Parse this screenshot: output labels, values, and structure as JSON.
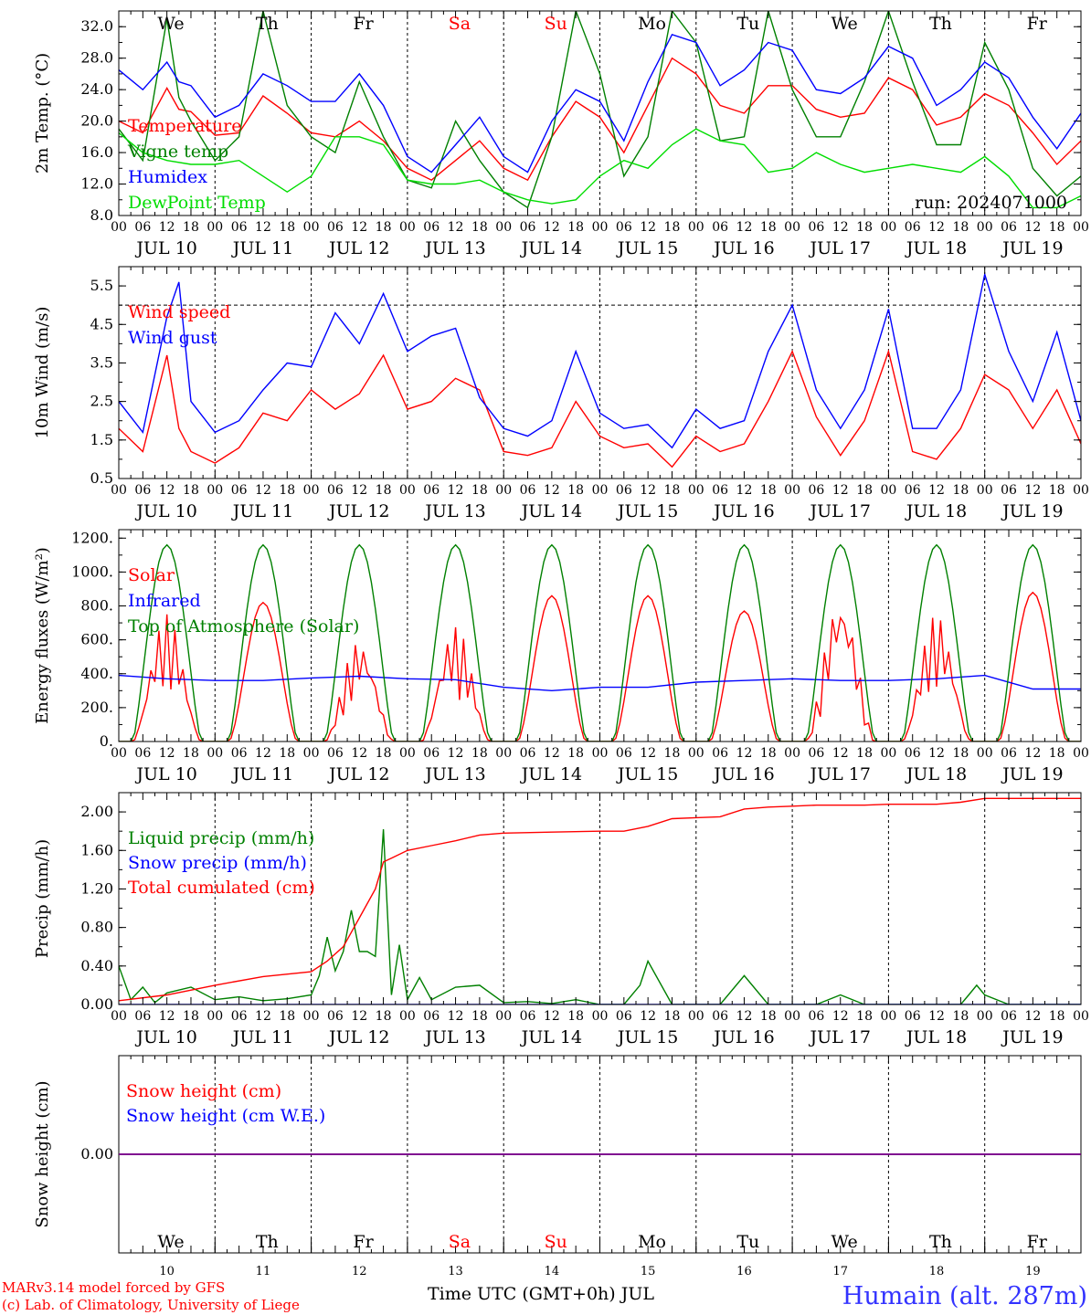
{
  "header": {
    "days": [
      {
        "label": "We",
        "color": "#000000"
      },
      {
        "label": "Th",
        "color": "#000000"
      },
      {
        "label": "Fr",
        "color": "#000000"
      },
      {
        "label": "Sa",
        "color": "#ff0000"
      },
      {
        "label": "Su",
        "color": "#ff0000"
      },
      {
        "label": "Mo",
        "color": "#000000"
      },
      {
        "label": "Tu",
        "color": "#000000"
      },
      {
        "label": "We",
        "color": "#000000"
      },
      {
        "label": "Th",
        "color": "#000000"
      },
      {
        "label": "Fr",
        "color": "#000000"
      }
    ],
    "date_labels": [
      "JUL 10",
      "JUL 11",
      "JUL 12",
      "JUL 13",
      "JUL 14",
      "JUL 15",
      "JUL 16",
      "JUL 17",
      "JUL 18",
      "JUL 19"
    ],
    "day_numbers": [
      "10",
      "11",
      "12",
      "13",
      "14",
      "15",
      "16",
      "17",
      "18",
      "19"
    ],
    "hour_ticks": [
      "00",
      "06",
      "12",
      "18"
    ],
    "hour_tick_end": "00"
  },
  "footer": {
    "model_line1": "MARv3.14 model forced by GFS",
    "model_line2": "(c) Lab. of Climatology, University of Liege",
    "xaxis_title": "Time UTC (GMT+0h) JUL",
    "station": "Humain (alt. 287m)"
  },
  "chart_data": [
    {
      "id": "temp",
      "type": "line",
      "ylabel": "2m Temp. (°C)",
      "ylim": [
        8.0,
        34.0
      ],
      "yticks": [
        8.0,
        12.0,
        16.0,
        20.0,
        24.0,
        28.0,
        32.0
      ],
      "ytick_labels": [
        "8.0",
        "12.0",
        "16.0",
        "20.0",
        "24.0",
        "28.0",
        "32.0"
      ],
      "annotation": "run: 2024071000",
      "series": [
        {
          "name": "Temperature",
          "color": "#ff0000",
          "x_hours": [
            0,
            6,
            12,
            15,
            18,
            24,
            30,
            36,
            42,
            48,
            54,
            60,
            66,
            72,
            78,
            84,
            90,
            96,
            102,
            108,
            114,
            120,
            126,
            132,
            138,
            144,
            150,
            156,
            162,
            168,
            174,
            180,
            186,
            192,
            198,
            204,
            210,
            216,
            222,
            228,
            234,
            240
          ],
          "values": [
            20.0,
            18.5,
            24.2,
            21.5,
            21.2,
            18.2,
            18.5,
            23.2,
            21.0,
            18.5,
            18.0,
            20.0,
            17.5,
            14.0,
            12.5,
            15.0,
            17.5,
            14.0,
            12.5,
            18.0,
            22.5,
            20.5,
            16.0,
            22.0,
            28.0,
            26.0,
            22.0,
            21.0,
            24.5,
            24.5,
            21.5,
            20.5,
            21.0,
            25.5,
            24.0,
            19.5,
            20.5,
            23.5,
            22.0,
            18.5,
            14.5,
            17.5
          ]
        },
        {
          "name": "Vigne temp",
          "color": "#008000",
          "x_hours": [
            0,
            6,
            12,
            15,
            18,
            24,
            30,
            36,
            42,
            48,
            54,
            60,
            66,
            72,
            78,
            84,
            90,
            96,
            102,
            108,
            114,
            120,
            126,
            132,
            138,
            144,
            150,
            156,
            162,
            168,
            174,
            180,
            186,
            192,
            198,
            204,
            210,
            216,
            222,
            228,
            234,
            240
          ],
          "values": [
            19.0,
            15.0,
            33.0,
            23.0,
            20.0,
            15.0,
            18.0,
            34.0,
            22.0,
            18.0,
            16.0,
            25.0,
            18.0,
            12.5,
            11.5,
            20.0,
            15.0,
            11.0,
            9.0,
            18.0,
            34.0,
            26.0,
            13.0,
            18.0,
            34.0,
            30.0,
            17.5,
            18.0,
            34.0,
            24.0,
            18.0,
            18.0,
            25.0,
            34.0,
            25.0,
            17.0,
            17.0,
            30.0,
            24.0,
            14.0,
            10.5,
            13.0
          ]
        },
        {
          "name": "Humidex",
          "color": "#0000ff",
          "x_hours": [
            0,
            6,
            12,
            15,
            18,
            24,
            30,
            36,
            42,
            48,
            54,
            60,
            66,
            72,
            78,
            84,
            90,
            96,
            102,
            108,
            114,
            120,
            126,
            132,
            138,
            144,
            150,
            156,
            162,
            168,
            174,
            180,
            186,
            192,
            198,
            204,
            210,
            216,
            222,
            228,
            234,
            240
          ],
          "values": [
            26.5,
            24.0,
            27.5,
            25.0,
            24.5,
            20.5,
            22.0,
            26.0,
            24.5,
            22.5,
            22.5,
            26.0,
            22.0,
            15.5,
            13.5,
            17.0,
            20.5,
            15.5,
            13.5,
            20.0,
            24.0,
            22.5,
            17.5,
            25.0,
            31.0,
            30.0,
            24.5,
            26.5,
            30.0,
            29.0,
            24.0,
            23.5,
            25.5,
            29.5,
            28.0,
            22.0,
            24.0,
            27.5,
            25.5,
            20.5,
            16.5,
            21.0
          ]
        },
        {
          "name": "DewPoint Temp",
          "color": "#00dd00",
          "x_hours": [
            0,
            6,
            12,
            18,
            24,
            30,
            36,
            42,
            48,
            54,
            60,
            66,
            72,
            78,
            84,
            90,
            96,
            102,
            108,
            114,
            120,
            126,
            132,
            138,
            144,
            150,
            156,
            162,
            168,
            174,
            180,
            186,
            192,
            198,
            204,
            210,
            216,
            222,
            228,
            234,
            240
          ],
          "values": [
            18.5,
            16.0,
            15.0,
            14.5,
            14.5,
            15.0,
            13.0,
            11.0,
            13.0,
            18.0,
            18.0,
            17.0,
            12.5,
            12.0,
            12.0,
            12.5,
            11.0,
            10.0,
            9.5,
            10.0,
            13.0,
            15.0,
            14.0,
            17.0,
            19.0,
            17.5,
            17.0,
            13.5,
            14.0,
            16.0,
            14.5,
            13.5,
            14.0,
            14.5,
            14.0,
            13.5,
            15.5,
            13.0,
            9.0,
            9.0,
            10.5
          ]
        }
      ]
    },
    {
      "id": "wind",
      "type": "line",
      "ylabel": "10m Wind (m/s)",
      "ylim": [
        0.5,
        6.0
      ],
      "yticks": [
        0.5,
        1.5,
        2.5,
        3.5,
        4.5,
        5.5
      ],
      "ytick_labels": [
        "0.5",
        "1.5",
        "2.5",
        "3.5",
        "4.5",
        "5.5"
      ],
      "reference_line": 5.0,
      "series": [
        {
          "name": "Wind speed",
          "color": "#ff0000",
          "x_hours": [
            0,
            6,
            12,
            15,
            18,
            24,
            30,
            36,
            42,
            48,
            54,
            60,
            66,
            72,
            78,
            84,
            90,
            96,
            102,
            108,
            114,
            120,
            126,
            132,
            138,
            144,
            150,
            156,
            162,
            168,
            174,
            180,
            186,
            192,
            198,
            204,
            210,
            216,
            222,
            228,
            234,
            240
          ],
          "values": [
            1.8,
            1.2,
            3.7,
            1.8,
            1.2,
            0.9,
            1.3,
            2.2,
            2.0,
            2.8,
            2.3,
            2.7,
            3.7,
            2.3,
            2.5,
            3.1,
            2.8,
            1.2,
            1.1,
            1.3,
            2.5,
            1.6,
            1.3,
            1.4,
            0.8,
            1.6,
            1.2,
            1.4,
            2.5,
            3.8,
            2.1,
            1.1,
            2.0,
            3.8,
            1.2,
            1.0,
            1.8,
            3.2,
            2.8,
            1.8,
            2.8,
            1.4
          ]
        },
        {
          "name": "Wind gust",
          "color": "#0000ff",
          "x_hours": [
            0,
            6,
            12,
            15,
            18,
            24,
            30,
            36,
            42,
            48,
            54,
            60,
            66,
            72,
            78,
            84,
            90,
            96,
            102,
            108,
            114,
            120,
            126,
            132,
            138,
            144,
            150,
            156,
            162,
            168,
            174,
            180,
            186,
            192,
            198,
            204,
            210,
            216,
            222,
            228,
            234,
            240
          ],
          "values": [
            2.5,
            1.7,
            4.7,
            5.6,
            2.5,
            1.7,
            2.0,
            2.8,
            3.5,
            3.4,
            4.8,
            4.0,
            5.3,
            3.8,
            4.2,
            4.4,
            2.6,
            1.8,
            1.6,
            2.0,
            3.8,
            2.2,
            1.8,
            1.9,
            1.3,
            2.3,
            1.8,
            2.0,
            3.8,
            5.0,
            2.8,
            1.8,
            2.8,
            4.9,
            1.8,
            1.8,
            2.8,
            5.8,
            3.8,
            2.5,
            4.3,
            2.0
          ]
        }
      ]
    },
    {
      "id": "energy",
      "type": "line",
      "ylabel": "Energy fluxes (W/m²)",
      "ylim": [
        0,
        1250
      ],
      "yticks": [
        0,
        200,
        400,
        600,
        800,
        1000,
        1200
      ],
      "ytick_labels": [
        "0.",
        "200.",
        "400.",
        "600.",
        "800.",
        "1000.",
        "1200."
      ],
      "series": [
        {
          "name": "Solar",
          "color": "#ff0000",
          "daily_peak": [
            750,
            820,
            600,
            680,
            860,
            860,
            770,
            860,
            750,
            880
          ],
          "cloudy_days": [
            0,
            2,
            3,
            7,
            8
          ]
        },
        {
          "name": "Infrared",
          "color": "#0000ff",
          "x_hours": [
            0,
            12,
            24,
            36,
            48,
            60,
            72,
            84,
            96,
            108,
            120,
            132,
            144,
            156,
            168,
            180,
            192,
            204,
            216,
            228,
            240
          ],
          "values": [
            390,
            370,
            360,
            360,
            375,
            385,
            370,
            365,
            320,
            300,
            320,
            320,
            350,
            360,
            370,
            360,
            360,
            370,
            390,
            310,
            310
          ]
        },
        {
          "name": "Top of Atmosphere (Solar)",
          "color": "#008000",
          "daily_peak": [
            1160,
            1160,
            1160,
            1160,
            1160,
            1160,
            1160,
            1160,
            1160,
            1160
          ]
        }
      ]
    },
    {
      "id": "precip",
      "type": "line",
      "ylabel": "Precip (mm/h)",
      "ylim": [
        0.0,
        2.2
      ],
      "yticks": [
        0.0,
        0.4,
        0.8,
        1.2,
        1.6,
        2.0
      ],
      "ytick_labels": [
        "0.00",
        "0.40",
        "0.80",
        "1.20",
        "1.60",
        "2.00"
      ],
      "series": [
        {
          "name": "Liquid precip (mm/h)",
          "color": "#008000",
          "x_hours": [
            0,
            3,
            6,
            9,
            12,
            18,
            24,
            30,
            36,
            42,
            48,
            50,
            52,
            54,
            56,
            58,
            60,
            62,
            64,
            66,
            68,
            70,
            72,
            75,
            78,
            84,
            90,
            96,
            102,
            108,
            114,
            120,
            126,
            130,
            132,
            138,
            144,
            150,
            156,
            162,
            168,
            174,
            180,
            186,
            192,
            198,
            204,
            210,
            212,
            214,
            216,
            222,
            228,
            234,
            240
          ],
          "values": [
            0.4,
            0.05,
            0.18,
            0.02,
            0.12,
            0.18,
            0.05,
            0.08,
            0.04,
            0.06,
            0.1,
            0.3,
            0.7,
            0.35,
            0.55,
            0.98,
            0.55,
            0.55,
            0.5,
            1.82,
            0.1,
            0.62,
            0.05,
            0.28,
            0.05,
            0.18,
            0.2,
            0.02,
            0.03,
            0.01,
            0.05,
            0.0,
            0.0,
            0.2,
            0.45,
            0.0,
            0.0,
            0.0,
            0.3,
            0.0,
            0.0,
            0.0,
            0.1,
            0.0,
            0.0,
            0.0,
            0.0,
            0.0,
            0.1,
            0.2,
            0.1,
            0.0,
            0.0,
            0.0,
            0.0
          ]
        },
        {
          "name": "Snow precip (mm/h)",
          "color": "#0000ff",
          "x_hours": [
            0,
            240
          ],
          "values": [
            0.0,
            0.0
          ]
        },
        {
          "name": "Total cumulated (cm)",
          "color": "#ff0000",
          "x_hours": [
            0,
            12,
            24,
            36,
            48,
            52,
            56,
            60,
            64,
            66,
            68,
            72,
            78,
            84,
            90,
            96,
            108,
            120,
            126,
            132,
            138,
            144,
            150,
            156,
            162,
            168,
            174,
            180,
            186,
            192,
            204,
            210,
            216,
            222,
            228,
            240
          ],
          "values": [
            0.04,
            0.1,
            0.2,
            0.29,
            0.34,
            0.45,
            0.6,
            0.9,
            1.2,
            1.48,
            1.52,
            1.6,
            1.65,
            1.7,
            1.76,
            1.78,
            1.79,
            1.8,
            1.8,
            1.85,
            1.93,
            1.94,
            1.95,
            2.03,
            2.05,
            2.06,
            2.07,
            2.07,
            2.07,
            2.08,
            2.08,
            2.1,
            2.14,
            2.14,
            2.14,
            2.14
          ]
        }
      ]
    },
    {
      "id": "snow",
      "type": "line",
      "ylabel": "Snow height (cm)",
      "ylim": [
        -1.0,
        1.0
      ],
      "yticks": [
        0.0
      ],
      "ytick_labels": [
        "0.00"
      ],
      "series": [
        {
          "name": "Snow height (cm)",
          "color": "#ff0000",
          "x_hours": [
            0,
            240
          ],
          "values": [
            0.0,
            0.0
          ]
        },
        {
          "name": "Snow height (cm W.E.)",
          "color": "#0000ff",
          "x_hours": [
            0,
            240
          ],
          "values": [
            0.0,
            0.0
          ]
        }
      ]
    }
  ]
}
